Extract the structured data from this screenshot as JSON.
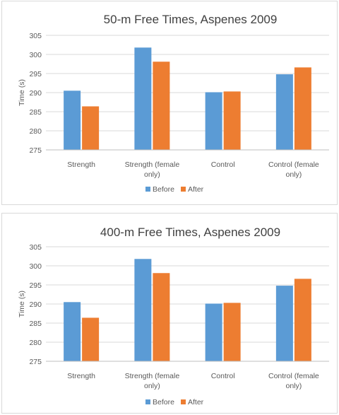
{
  "chart_data": [
    {
      "type": "bar",
      "title": "50-m Free Times, Aspenes 2009",
      "ylabel": "Time (s)",
      "xlabel": "",
      "ylim": [
        275,
        305
      ],
      "yticks": [
        275,
        280,
        285,
        290,
        295,
        300,
        305
      ],
      "grid": true,
      "legend_position": "bottom",
      "categories": [
        "Strength",
        "Strength (female only)",
        "Control",
        "Control (female only)"
      ],
      "series": [
        {
          "name": "Before",
          "color": "#5b9bd5",
          "values": [
            290.5,
            301.8,
            290.1,
            294.8
          ]
        },
        {
          "name": "After",
          "color": "#ed7d31",
          "values": [
            286.4,
            298.1,
            290.3,
            296.6
          ]
        }
      ]
    },
    {
      "type": "bar",
      "title": "400-m Free Times, Aspenes 2009",
      "ylabel": "Time (s)",
      "xlabel": "",
      "ylim": [
        275,
        305
      ],
      "yticks": [
        275,
        280,
        285,
        290,
        295,
        300,
        305
      ],
      "grid": true,
      "legend_position": "bottom",
      "categories": [
        "Strength",
        "Strength (female only)",
        "Control",
        "Control (female only)"
      ],
      "series": [
        {
          "name": "Before",
          "color": "#5b9bd5",
          "values": [
            290.5,
            301.8,
            290.1,
            294.8
          ]
        },
        {
          "name": "After",
          "color": "#ed7d31",
          "values": [
            286.4,
            298.1,
            290.3,
            296.6
          ]
        }
      ]
    }
  ]
}
